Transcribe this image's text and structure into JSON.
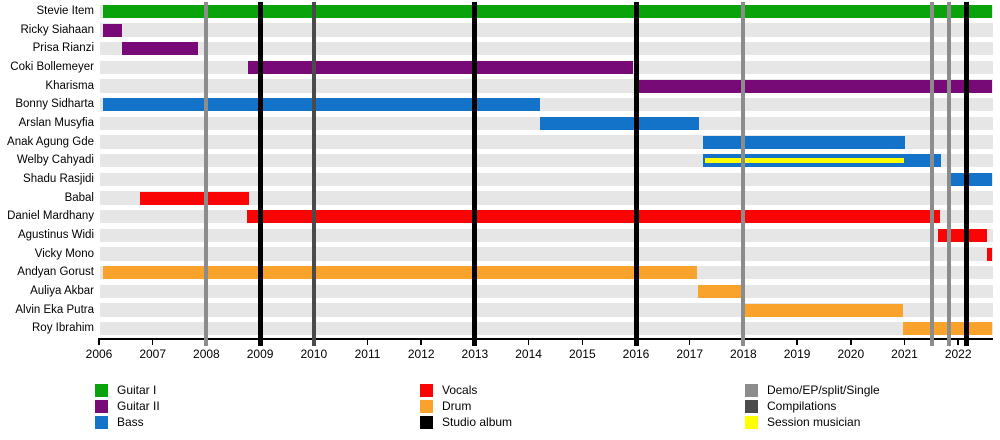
{
  "colors": {
    "guitar1": "#0ba30b",
    "guitar2": "#780a78",
    "bass": "#1273c8",
    "vocals": "#fa0505",
    "drum": "#f9a22c",
    "studio_album": "#000000",
    "demo": "#8c8c8c",
    "compilations": "#4b4b4b",
    "session": "#ffff00",
    "row_band": "#e6e6e6"
  },
  "chart_data": {
    "type": "timeline",
    "title": "",
    "x_range": [
      2006,
      2022.65
    ],
    "x_ticks": [
      2006,
      2007,
      2008,
      2009,
      2010,
      2011,
      2012,
      2013,
      2014,
      2015,
      2016,
      2017,
      2018,
      2019,
      2020,
      2021,
      2022
    ],
    "members": [
      {
        "name": "Stevie Item",
        "bars": [
          {
            "role": "Guitar I",
            "color": "guitar1",
            "start": 2006.07,
            "end": 2022.63
          }
        ]
      },
      {
        "name": "Ricky Siahaan",
        "bars": [
          {
            "role": "Guitar II",
            "color": "guitar2",
            "start": 2006.07,
            "end": 2006.43
          }
        ]
      },
      {
        "name": "Prisa Rianzi",
        "bars": [
          {
            "role": "Guitar II",
            "color": "guitar2",
            "start": 2006.43,
            "end": 2007.84
          }
        ]
      },
      {
        "name": "Coki Bollemeyer",
        "bars": [
          {
            "role": "Guitar II",
            "color": "guitar2",
            "start": 2008.77,
            "end": 2015.94
          }
        ]
      },
      {
        "name": "Kharisma",
        "bars": [
          {
            "role": "Guitar II",
            "color": "guitar2",
            "start": 2015.98,
            "end": 2022.63
          }
        ]
      },
      {
        "name": "Bonny Sidharta",
        "bars": [
          {
            "role": "Bass",
            "color": "bass",
            "start": 2006.07,
            "end": 2014.21
          }
        ]
      },
      {
        "name": "Arslan Musyfia",
        "bars": [
          {
            "role": "Bass",
            "color": "bass",
            "start": 2014.21,
            "end": 2017.17
          }
        ]
      },
      {
        "name": "Anak Agung Gde",
        "bars": [
          {
            "role": "Bass",
            "color": "bass",
            "start": 2017.25,
            "end": 2021.01
          }
        ]
      },
      {
        "name": "Welby Cahyadi",
        "bars": [
          {
            "role": "Bass",
            "color": "bass",
            "start": 2017.25,
            "end": 2021.68,
            "session_overlay": {
              "label": "Session musician",
              "color": "session",
              "start": 2017.28,
              "end": 2020.99
            }
          }
        ]
      },
      {
        "name": "Shadu Rasjidi",
        "bars": [
          {
            "role": "Bass",
            "color": "bass",
            "start": 2021.81,
            "end": 2022.63
          }
        ]
      },
      {
        "name": "Babal",
        "bars": [
          {
            "role": "Vocals",
            "color": "vocals",
            "start": 2006.76,
            "end": 2008.79
          }
        ]
      },
      {
        "name": "Daniel Mardhany",
        "bars": [
          {
            "role": "Vocals",
            "color": "vocals",
            "start": 2008.76,
            "end": 2021.66
          }
        ]
      },
      {
        "name": "Agustinus Widi",
        "bars": [
          {
            "role": "Vocals",
            "color": "vocals",
            "start": 2021.62,
            "end": 2022.53
          }
        ]
      },
      {
        "name": "Vicky Mono",
        "bars": [
          {
            "role": "Vocals",
            "color": "vocals",
            "start": 2022.53,
            "end": 2022.63
          }
        ]
      },
      {
        "name": "Andyan Gorust",
        "bars": [
          {
            "role": "Drum",
            "color": "drum",
            "start": 2006.07,
            "end": 2017.13
          }
        ]
      },
      {
        "name": "Auliya Akbar",
        "bars": [
          {
            "role": "Drum",
            "color": "drum",
            "start": 2017.15,
            "end": 2018.01
          }
        ]
      },
      {
        "name": "Alvin Eka Putra",
        "bars": [
          {
            "role": "Drum",
            "color": "drum",
            "start": 2018.03,
            "end": 2020.97
          }
        ]
      },
      {
        "name": "Roy Ibrahim",
        "bars": [
          {
            "role": "Drum",
            "color": "drum",
            "start": 2020.97,
            "end": 2022.63
          }
        ]
      }
    ],
    "releases": [
      {
        "year": 2008.0,
        "type": "Demo/EP/split/Single",
        "color": "demo"
      },
      {
        "year": 2009.0,
        "type": "Studio album",
        "color": "studio_album"
      },
      {
        "year": 2010.0,
        "type": "Compilations",
        "color": "compilations"
      },
      {
        "year": 2013.0,
        "type": "Studio album",
        "color": "studio_album"
      },
      {
        "year": 2016.0,
        "type": "Studio album",
        "color": "studio_album"
      },
      {
        "year": 2018.0,
        "type": "Demo/EP/split/Single",
        "color": "demo"
      },
      {
        "year": 2021.51,
        "type": "Demo/EP/split/Single",
        "color": "demo"
      },
      {
        "year": 2021.83,
        "type": "Demo/EP/split/Single",
        "color": "demo"
      },
      {
        "year": 2022.16,
        "type": "Studio album",
        "color": "studio_album"
      }
    ],
    "legend": {
      "columns": [
        {
          "items": [
            {
              "label": "Guitar I",
              "color": "guitar1"
            },
            {
              "label": "Guitar II",
              "color": "guitar2"
            },
            {
              "label": "Bass",
              "color": "bass"
            }
          ]
        },
        {
          "items": [
            {
              "label": "Vocals",
              "color": "vocals"
            },
            {
              "label": "Drum",
              "color": "drum"
            },
            {
              "label": "Studio album",
              "color": "studio_album"
            }
          ]
        },
        {
          "items": [
            {
              "label": "Demo/EP/split/Single",
              "color": "demo"
            },
            {
              "label": "Compilations",
              "color": "compilations"
            },
            {
              "label": "Session musician",
              "color": "session"
            }
          ]
        }
      ]
    }
  }
}
